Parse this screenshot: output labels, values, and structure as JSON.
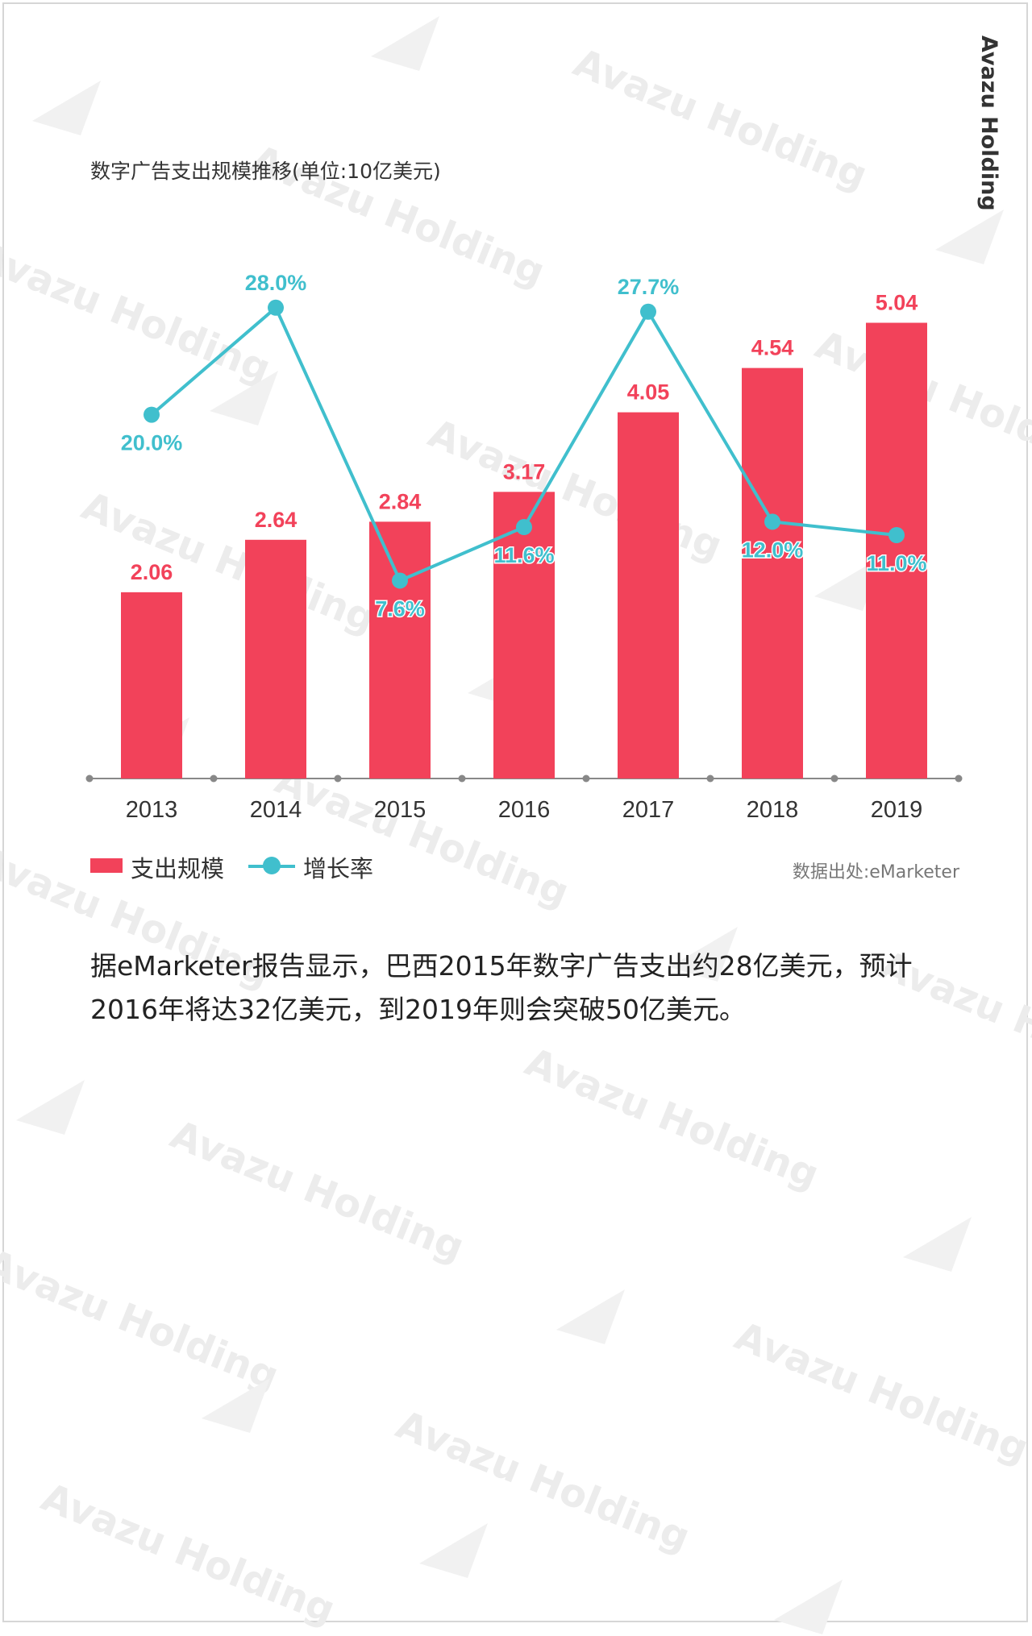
{
  "brand": "Avazu Holding",
  "watermark": "Avazu Holding",
  "colors": {
    "bar": "#f2425a",
    "line": "#40bfcd",
    "bar_label": "#f2425a",
    "line_label": "#40bfcd",
    "axis": "#888888"
  },
  "chart_data": {
    "type": "bar",
    "title": "数字广告支出规模推移(单位:10亿美元)",
    "categories": [
      "2013",
      "2014",
      "2015",
      "2016",
      "2017",
      "2018",
      "2019"
    ],
    "series": [
      {
        "name": "支出规模",
        "type": "bar",
        "values": [
          2.06,
          2.64,
          2.84,
          3.17,
          4.05,
          4.54,
          5.04
        ],
        "labels": [
          "2.06",
          "2.64",
          "2.84",
          "3.17",
          "4.05",
          "4.54",
          "5.04"
        ]
      },
      {
        "name": "增长率",
        "type": "line",
        "values": [
          20.0,
          28.0,
          7.6,
          11.6,
          27.7,
          12.0,
          11.0
        ],
        "labels": [
          "20.0%",
          "28.0%",
          "7.6%",
          "11.6%",
          "27.7%",
          "12.0%",
          "11.0%"
        ]
      }
    ],
    "legend_position": "bottom-left",
    "grid": false
  },
  "legend": {
    "bar_label": "支出规模",
    "line_label": "增长率"
  },
  "source": "数据出处:eMarketer",
  "body_text": "据eMarketer报告显示，巴西2015年数字广告支出约28亿美元，预计2016年将达32亿美元，到2019年则会突破50亿美元。"
}
